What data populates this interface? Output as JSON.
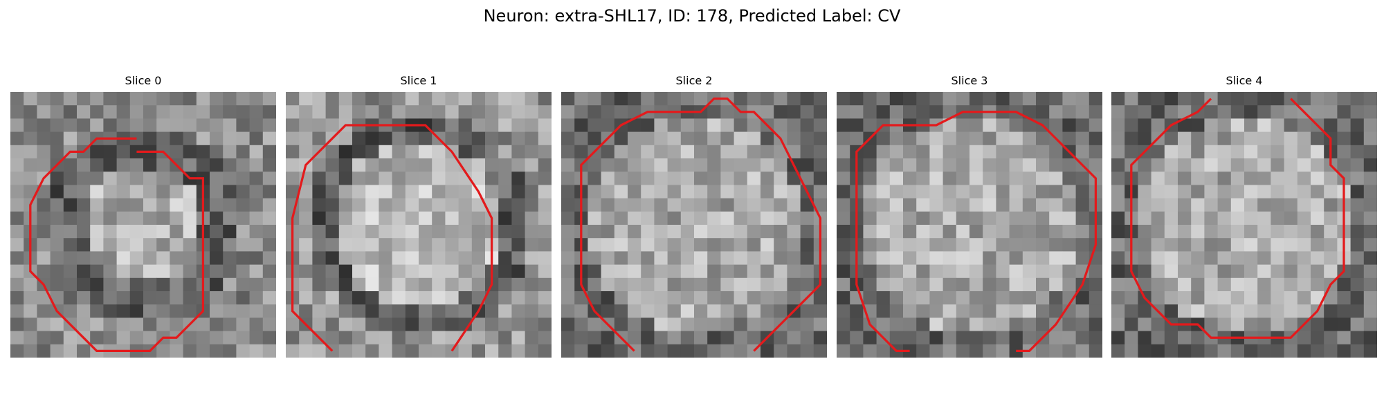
{
  "figure": {
    "title": "Neuron: extra-SHL17, ID: 178, Predicted Label: CV"
  },
  "slices": [
    {
      "title": "Slice 0",
      "image": "grayscale-em-patch",
      "contour_color": "#e31a1c",
      "contour": [
        [
          9.5,
          4.5
        ],
        [
          11.5,
          4.5
        ],
        [
          13.5,
          6.5
        ],
        [
          14.5,
          6.5
        ],
        [
          14.5,
          14.5
        ],
        [
          14.5,
          15.5
        ],
        [
          14.5,
          16.5
        ],
        [
          13.5,
          17.5
        ],
        [
          12.5,
          18.5
        ],
        [
          11.5,
          18.5
        ],
        [
          10.5,
          19.5
        ],
        [
          6.5,
          19.5
        ],
        [
          5.5,
          18.5
        ],
        [
          4.5,
          17.5
        ],
        [
          3.5,
          16.5
        ],
        [
          2.5,
          14.5
        ],
        [
          1.5,
          13.5
        ],
        [
          1.5,
          8.5
        ],
        [
          2.5,
          6.5
        ],
        [
          3.5,
          5.5
        ],
        [
          4.5,
          4.5
        ],
        [
          5.5,
          4.5
        ],
        [
          6.5,
          3.5
        ],
        [
          9.5,
          3.5
        ]
      ]
    },
    {
      "title": "Slice 1",
      "image": "grayscale-em-patch",
      "contour_color": "#e31a1c",
      "contour": [
        [
          3.5,
          19.5
        ],
        [
          0.5,
          16.5
        ],
        [
          0.5,
          9.5
        ],
        [
          1.5,
          5.5
        ],
        [
          2.5,
          4.5
        ],
        [
          3.5,
          3.5
        ],
        [
          4.5,
          2.5
        ],
        [
          5.5,
          2.5
        ],
        [
          10.5,
          2.5
        ],
        [
          12.5,
          4.5
        ],
        [
          14.5,
          7.5
        ],
        [
          15.5,
          9.5
        ],
        [
          15.5,
          11.5
        ],
        [
          15.5,
          14.5
        ],
        [
          14.5,
          16.5
        ],
        [
          12.5,
          19.5
        ]
      ]
    },
    {
      "title": "Slice 2",
      "image": "grayscale-em-patch",
      "contour_color": "#e31a1c",
      "contour": [
        [
          5.5,
          19.5
        ],
        [
          2.5,
          16.5
        ],
        [
          1.5,
          14.5
        ],
        [
          1.5,
          5.5
        ],
        [
          3.5,
          3.5
        ],
        [
          4.5,
          2.5
        ],
        [
          6.5,
          1.5
        ],
        [
          8.5,
          1.5
        ],
        [
          10.5,
          1.5
        ],
        [
          11.5,
          0.5
        ],
        [
          12.5,
          0.5
        ],
        [
          13.5,
          1.5
        ],
        [
          14.5,
          1.5
        ],
        [
          15.5,
          2.5
        ],
        [
          16.5,
          3.5
        ],
        [
          17.5,
          5.5
        ],
        [
          18.5,
          7.5
        ],
        [
          19.5,
          9.5
        ],
        [
          19.5,
          14.5
        ],
        [
          17.5,
          16.5
        ],
        [
          16.5,
          17.5
        ],
        [
          15.5,
          18.5
        ],
        [
          14.5,
          19.5
        ]
      ]
    },
    {
      "title": "Slice 3",
      "image": "grayscale-em-patch",
      "contour_color": "#e31a1c",
      "contour": [
        [
          5.5,
          19.5
        ],
        [
          4.5,
          19.5
        ],
        [
          2.5,
          17.5
        ],
        [
          1.5,
          14.5
        ],
        [
          1.5,
          4.5
        ],
        [
          2.5,
          3.5
        ],
        [
          3.5,
          2.5
        ],
        [
          7.5,
          2.5
        ],
        [
          9.5,
          1.5
        ],
        [
          11.5,
          1.5
        ],
        [
          13.5,
          1.5
        ],
        [
          15.5,
          2.5
        ],
        [
          16.5,
          3.5
        ],
        [
          17.5,
          4.5
        ],
        [
          18.5,
          5.5
        ],
        [
          19.5,
          6.5
        ],
        [
          19.5,
          8.5
        ],
        [
          19.5,
          11.5
        ],
        [
          18.5,
          14.5
        ],
        [
          16.5,
          17.5
        ],
        [
          14.5,
          19.5
        ],
        [
          13.5,
          19.5
        ]
      ]
    },
    {
      "title": "Slice 4",
      "image": "grayscale-em-patch",
      "contour_color": "#e31a1c",
      "contour_segments": [
        [
          [
            7.5,
            0.5
          ],
          [
            6.5,
            1.5
          ],
          [
            4.5,
            2.5
          ],
          [
            3.5,
            3.5
          ],
          [
            2.5,
            4.5
          ],
          [
            1.5,
            5.5
          ],
          [
            1.5,
            13.5
          ],
          [
            2.5,
            15.5
          ],
          [
            3.5,
            16.5
          ],
          [
            4.5,
            17.5
          ],
          [
            6.5,
            17.5
          ],
          [
            7.5,
            18.5
          ],
          [
            13.5,
            18.5
          ],
          [
            14.5,
            17.5
          ],
          [
            15.5,
            16.5
          ],
          [
            16.5,
            14.5
          ],
          [
            17.5,
            13.5
          ],
          [
            17.5,
            6.5
          ],
          [
            16.5,
            5.5
          ],
          [
            16.5,
            3.5
          ],
          [
            15.5,
            2.5
          ],
          [
            14.5,
            1.5
          ],
          [
            13.5,
            0.5
          ]
        ]
      ]
    }
  ]
}
